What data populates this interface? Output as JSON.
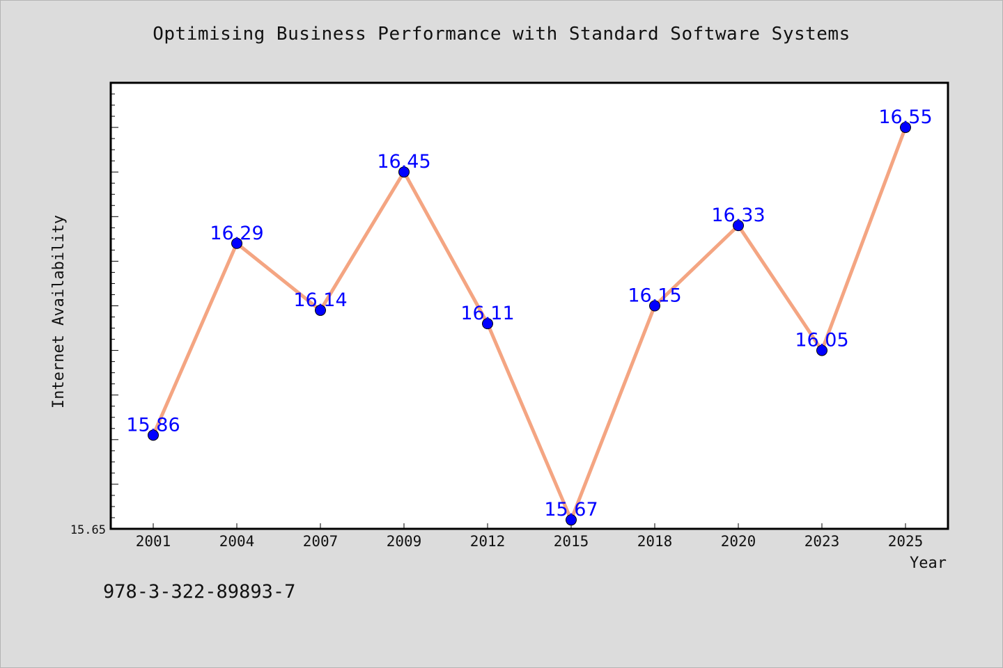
{
  "chart_data": {
    "type": "line",
    "title": "Optimising Business Performance with Standard Software Systems",
    "xlabel": "Year",
    "ylabel": "Internet Availability",
    "categories": [
      "2001",
      "2004",
      "2007",
      "2009",
      "2012",
      "2015",
      "2018",
      "2020",
      "2023",
      "2025"
    ],
    "series": [
      {
        "values": [
          15.86,
          16.29,
          16.14,
          16.45,
          16.11,
          15.67,
          16.15,
          16.33,
          16.05,
          16.55
        ],
        "labels": [
          "15.86",
          "16.29",
          "16.14",
          "16.45",
          "16.11",
          "15.67",
          "16.15",
          "16.33",
          "16.05",
          "16.55"
        ]
      }
    ],
    "ylim": [
      15.65,
      16.65
    ],
    "ytick_labels": [
      "15.65"
    ],
    "grid": false,
    "line_color": "#f4a582",
    "marker_color": "#0000ff",
    "label_color": "#0000ff"
  },
  "footer": {
    "isbn": "978-3-322-89893-7"
  }
}
